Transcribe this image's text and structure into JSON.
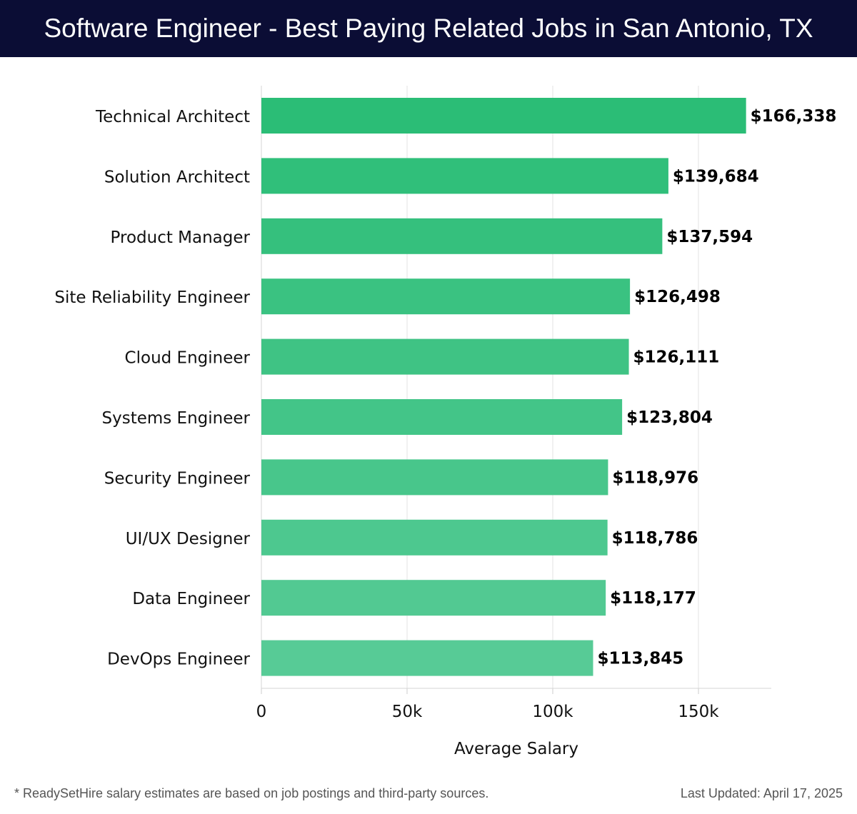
{
  "header": {
    "title": "Software Engineer - Best Paying Related Jobs in San Antonio, TX"
  },
  "chart_data": {
    "type": "bar",
    "orientation": "horizontal",
    "title": "Software Engineer - Best Paying Related Jobs in San Antonio, TX",
    "xlabel": "Average Salary",
    "ylabel": "",
    "xlim": [
      0,
      175000
    ],
    "xticks": [
      0,
      50000,
      100000,
      150000
    ],
    "xtick_labels": [
      "0",
      "50k",
      "100k",
      "150k"
    ],
    "grid": true,
    "categories": [
      "Technical Architect",
      "Solution Architect",
      "Product Manager",
      "Site Reliability Engineer",
      "Cloud Engineer",
      "Systems Engineer",
      "Security Engineer",
      "UI/UX Designer",
      "Data Engineer",
      "DevOps Engineer"
    ],
    "values": [
      166338,
      139684,
      137594,
      126498,
      126111,
      123804,
      118976,
      118786,
      118177,
      113845
    ],
    "value_labels": [
      "$166,338",
      "$139,684",
      "$137,594",
      "$126,498",
      "$126,111",
      "$123,804",
      "$118,976",
      "$118,786",
      "$118,177",
      "$113,845"
    ],
    "colors": {
      "top": "#2bbd76",
      "bottom": "#57cb96"
    }
  },
  "footer": {
    "note": "* ReadySetHire salary estimates are based on job postings and third-party sources.",
    "updated": "Last Updated: April 17, 2025"
  }
}
